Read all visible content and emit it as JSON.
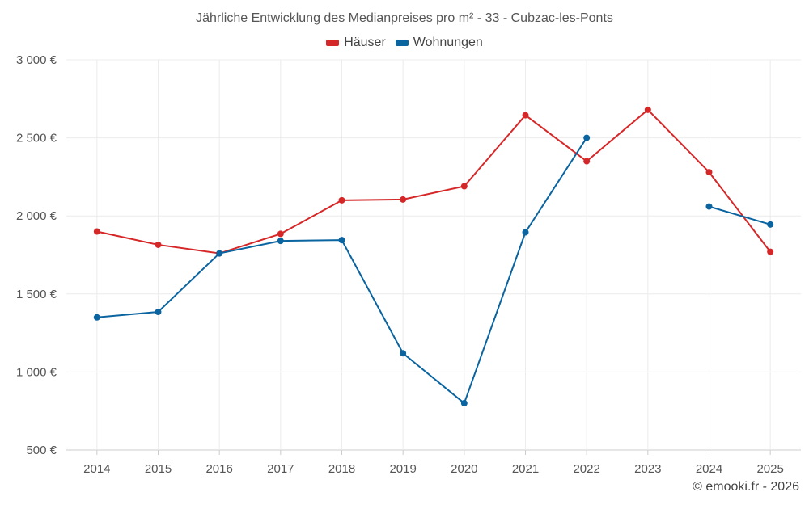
{
  "chart_data": {
    "type": "line",
    "title": "Jährliche Entwicklung des Medianpreises pro m² - 33 - Cubzac-les-Ponts",
    "xlabel": "",
    "ylabel": "",
    "categories": [
      "2014",
      "2015",
      "2016",
      "2017",
      "2018",
      "2019",
      "2020",
      "2021",
      "2022",
      "2023",
      "2024",
      "2025"
    ],
    "ylim": [
      500,
      3000
    ],
    "yticks": [
      500,
      1000,
      1500,
      2000,
      2500,
      3000
    ],
    "ytick_labels": [
      "500 €",
      "1 000 €",
      "1 500 €",
      "2 000 €",
      "2 500 €",
      "3 000 €"
    ],
    "grid": true,
    "legend_position": "top-center",
    "series": [
      {
        "name": "Häuser",
        "color": "#d62728",
        "values": [
          1900,
          1815,
          1760,
          1885,
          2100,
          2105,
          2190,
          2645,
          2350,
          2680,
          2280,
          1770
        ]
      },
      {
        "name": "Wohnungen",
        "color": "#0a64a0",
        "values": [
          1350,
          1385,
          1760,
          1840,
          1845,
          1120,
          800,
          1895,
          2500,
          null,
          2060,
          1945
        ]
      }
    ]
  },
  "credit": "© emooki.fr - 2026"
}
